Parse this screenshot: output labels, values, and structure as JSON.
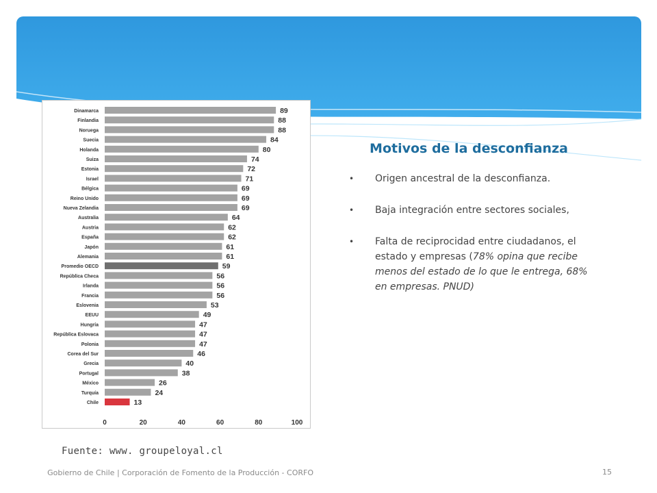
{
  "slide": {
    "title": "Motivos de la desconfianza",
    "bullets": [
      {
        "text": "Origen ancestral de la desconfianza."
      },
      {
        "text": "Baja integración entre sectores sociales,"
      },
      {
        "text": "Falta de reciprocidad entre ciudadanos, el estado y empresas (",
        "italic": "78% opina que recibe menos del estado de lo que le entrega, 68% en empresas. PNUD)"
      }
    ],
    "source": "Fuente: www. groupeloyal.cl",
    "footer": "Gobierno de Chile | Corporación de Fomento de la Producción - CORFO",
    "page_number": "15"
  },
  "colors": {
    "banner_dark": "#2f98de",
    "banner_light": "#6ccaf7",
    "title": "#1e6d9e",
    "bar_default": "#a3a3a3",
    "bar_oecd": "#6f6f6f",
    "bar_chile": "#d9363e"
  },
  "chart_data": {
    "type": "bar",
    "orientation": "horizontal",
    "categories": [
      "Dinamarca",
      "Finlandia",
      "Noruega",
      "Suecia",
      "Holanda",
      "Suiza",
      "Estonia",
      "Israel",
      "Bélgica",
      "Reino Unido",
      "Nueva Zelandia",
      "Australia",
      "Austria",
      "España",
      "Japón",
      "Alemania",
      "Promedio OECD",
      "República Checa",
      "Irlanda",
      "Francia",
      "Eslovenia",
      "EEUU",
      "Hungría",
      "República Eslovaca",
      "Polonia",
      "Corea del Sur",
      "Grecia",
      "Portugal",
      "México",
      "Turquía",
      "Chile"
    ],
    "values": [
      89,
      88,
      88,
      84,
      80,
      74,
      72,
      71,
      69,
      69,
      69,
      64,
      62,
      62,
      61,
      61,
      59,
      56,
      56,
      56,
      53,
      49,
      47,
      47,
      47,
      46,
      40,
      38,
      26,
      24,
      13
    ],
    "highlight": {
      "Promedio OECD": "#6f6f6f",
      "Chile": "#d9363e"
    },
    "xlim": [
      0,
      100
    ],
    "xticks": [
      0,
      20,
      40,
      60,
      80,
      100
    ],
    "grid": false
  }
}
